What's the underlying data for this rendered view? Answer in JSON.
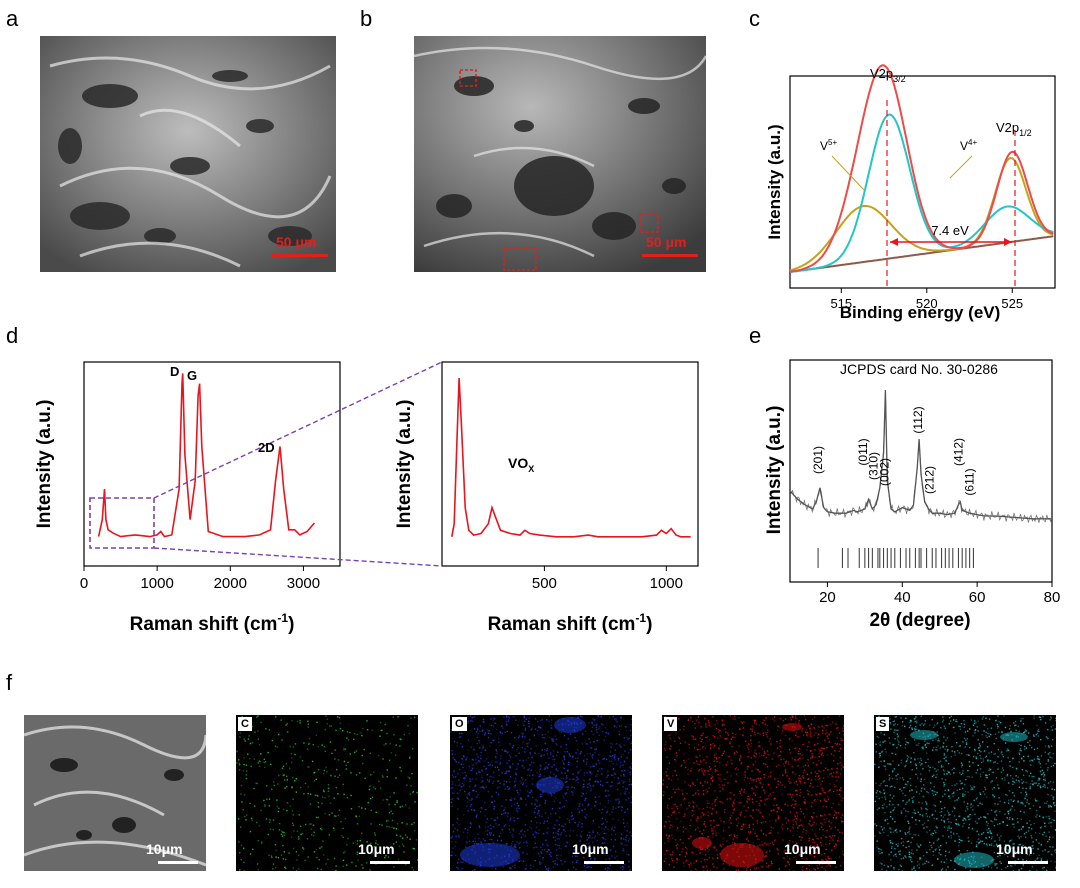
{
  "panel_labels": {
    "a": "a",
    "b": "b",
    "c": "c",
    "d": "d",
    "e": "e",
    "f": "f"
  },
  "panel_a": {
    "scale_bar": "50 μm"
  },
  "panel_b": {
    "scale_bar": "50 μm"
  },
  "panel_f": {
    "tiles": [
      {
        "tag": "",
        "scale_bar": "10μm",
        "color": "#9a9a9a"
      },
      {
        "tag": "C",
        "scale_bar": "10μm",
        "color": "#21c22b"
      },
      {
        "tag": "O",
        "scale_bar": "10μm",
        "color": "#1f3bd8"
      },
      {
        "tag": "V",
        "scale_bar": "10μm",
        "color": "#e01010"
      },
      {
        "tag": "S",
        "scale_bar": "10μm",
        "color": "#1fb7bd"
      }
    ]
  },
  "chart_data": [
    {
      "id": "c",
      "type": "line",
      "title": "",
      "xlabel": "Binding energy (eV)",
      "ylabel": "Intensity (a.u.)",
      "xlim": [
        512,
        527.5
      ],
      "xticks": [
        515,
        520,
        525
      ],
      "annotations": {
        "peak1": "V2p",
        "peak1_sub": "3/2",
        "peak2": "V2p",
        "peak2_sub": "1/2",
        "v5": "V",
        "v5_sup": "5+",
        "v4": "V",
        "v4_sup": "4+",
        "split": "7.4 eV"
      },
      "peak_positions_eV": [
        517.6,
        525.0
      ],
      "series": [
        {
          "name": "envelope",
          "color": "#ef4a4a"
        },
        {
          "name": "V5+",
          "color": "#22c6c8"
        },
        {
          "name": "V4+",
          "color": "#c5a21a"
        },
        {
          "name": "background",
          "color": "#8b5a4a"
        }
      ]
    },
    {
      "id": "d1",
      "type": "line",
      "xlabel": "Raman shift (cm",
      "xlabel_sup": "-1",
      "xlabel_end": ")",
      "ylabel": "Intensity (a.u.)",
      "xlim": [
        0,
        3500
      ],
      "xticks": [
        0,
        1000,
        2000,
        3000
      ],
      "peaks": [
        {
          "label": "D",
          "x": 1350
        },
        {
          "label": "G",
          "x": 1580
        },
        {
          "label": "2D",
          "x": 2680
        }
      ],
      "x": [
        200,
        250,
        280,
        300,
        330,
        400,
        500,
        700,
        900,
        1000,
        1050,
        1100,
        1200,
        1300,
        1340,
        1350,
        1380,
        1450,
        1520,
        1560,
        1580,
        1610,
        1700,
        1900,
        2200,
        2400,
        2550,
        2620,
        2680,
        2730,
        2800,
        2880,
        2950,
        3050,
        3150
      ],
      "y": [
        0.02,
        0.12,
        0.3,
        0.12,
        0.06,
        0.04,
        0.02,
        0.03,
        0.02,
        0.03,
        0.05,
        0.02,
        0.03,
        0.3,
        0.92,
        0.98,
        0.5,
        0.12,
        0.35,
        0.85,
        0.92,
        0.55,
        0.05,
        0.02,
        0.02,
        0.03,
        0.06,
        0.35,
        0.55,
        0.3,
        0.06,
        0.06,
        0.03,
        0.05,
        0.1
      ],
      "color": "#e8141e"
    },
    {
      "id": "d2",
      "type": "line",
      "xlabel": "Raman shift (cm",
      "xlabel_sup": "-1",
      "xlabel_end": ")",
      "ylabel": "Intensity (a.u.)",
      "xlim": [
        80,
        1130
      ],
      "xticks": [
        500,
        1000
      ],
      "annotation": "VO",
      "annotation_sub": "X",
      "x": [
        120,
        130,
        140,
        150,
        160,
        175,
        190,
        210,
        240,
        270,
        285,
        300,
        320,
        360,
        400,
        420,
        440,
        480,
        550,
        620,
        680,
        720,
        800,
        900,
        960,
        980,
        1000,
        1020,
        1040,
        1060,
        1100
      ],
      "y": [
        0.02,
        0.1,
        0.55,
        1.0,
        0.7,
        0.2,
        0.06,
        0.03,
        0.04,
        0.1,
        0.2,
        0.14,
        0.06,
        0.04,
        0.03,
        0.06,
        0.04,
        0.03,
        0.02,
        0.02,
        0.03,
        0.02,
        0.02,
        0.02,
        0.03,
        0.06,
        0.04,
        0.07,
        0.03,
        0.02,
        0.02
      ],
      "color": "#e8141e"
    },
    {
      "id": "e",
      "type": "line",
      "title": "JCPDS card No. 30-0286",
      "xlabel": "2θ (degree)",
      "ylabel": "Intensity (a.u.)",
      "xlim": [
        10,
        80
      ],
      "xticks": [
        20,
        40,
        60,
        80
      ],
      "x": [
        10,
        12,
        14,
        16,
        17,
        18,
        19,
        20,
        22,
        25,
        27,
        28,
        30,
        31,
        32,
        33,
        34,
        35,
        35.5,
        36,
        37,
        38,
        40,
        42,
        43,
        44,
        44.5,
        45,
        46,
        47,
        48,
        50,
        52,
        54,
        55,
        55.5,
        56,
        58,
        60,
        62,
        65,
        70,
        75,
        80
      ],
      "y": [
        0.28,
        0.22,
        0.18,
        0.15,
        0.2,
        0.3,
        0.16,
        0.13,
        0.12,
        0.12,
        0.14,
        0.13,
        0.15,
        0.22,
        0.15,
        0.18,
        0.3,
        0.55,
        1.0,
        0.35,
        0.15,
        0.13,
        0.16,
        0.14,
        0.18,
        0.45,
        0.65,
        0.4,
        0.2,
        0.15,
        0.12,
        0.12,
        0.11,
        0.12,
        0.18,
        0.2,
        0.14,
        0.12,
        0.11,
        0.1,
        0.1,
        0.09,
        0.08,
        0.08
      ],
      "peak_labels": [
        {
          "label": "(201)",
          "x": 17.5
        },
        {
          "label": "(011)",
          "x": 29.5
        },
        {
          "label": "(310)",
          "x": 32.3
        },
        {
          "label": "(002)",
          "x": 35.3
        },
        {
          "label": "(112)",
          "x": 44.2
        },
        {
          "label": "(212)",
          "x": 47.3
        },
        {
          "label": "(412)",
          "x": 55
        },
        {
          "label": "(611)",
          "x": 58
        }
      ],
      "ref_lines": [
        17.5,
        24,
        25.5,
        28.5,
        30,
        31,
        32,
        33.5,
        34,
        35,
        36,
        37,
        38,
        39.5,
        41,
        42,
        43.5,
        44.5,
        45,
        46.5,
        48,
        49,
        50.5,
        51.5,
        52.5,
        53.5,
        55,
        56,
        57,
        58,
        59
      ],
      "color": "#555555"
    }
  ]
}
